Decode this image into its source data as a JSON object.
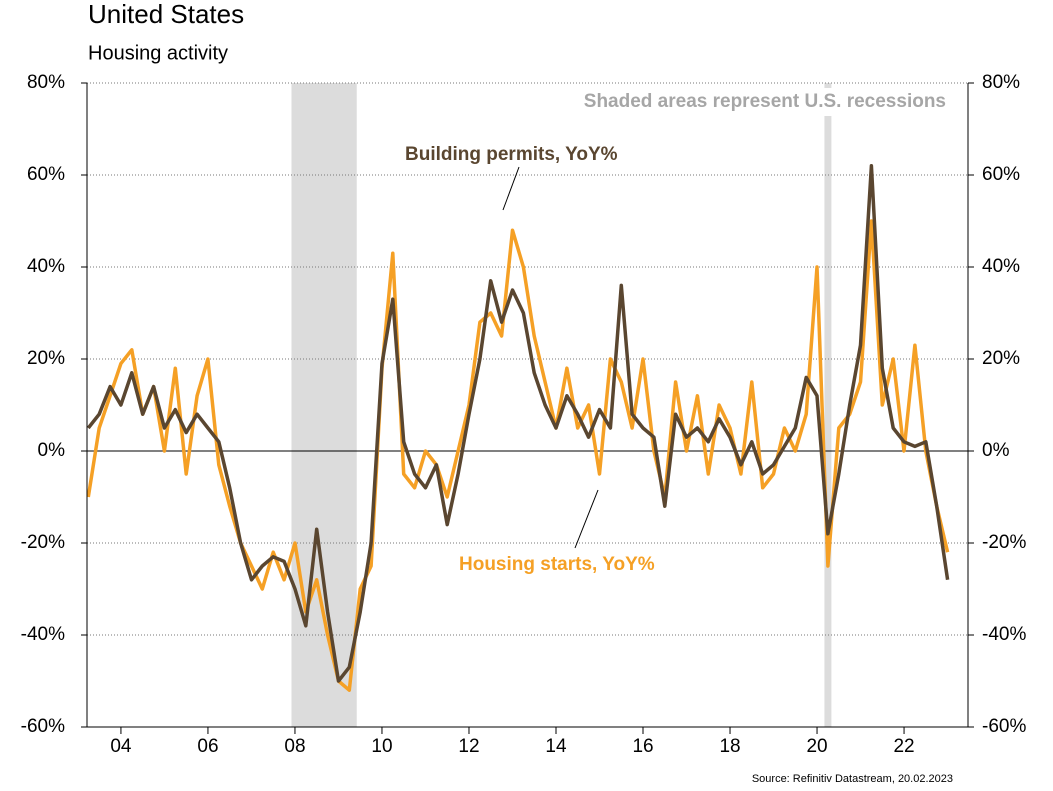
{
  "chart_data": {
    "type": "line",
    "title": "United States",
    "subtitle": "Housing activity",
    "source": "Source: Refinitiv Datastream, 20.02.2023",
    "recession_note": "Shaded areas represent U.S. recessions",
    "recessions": [
      [
        2007.92,
        2009.42
      ],
      [
        2020.17,
        2020.33
      ]
    ],
    "recession_color": "#dcdcdc",
    "x": [
      2003.25,
      2003.5,
      2003.75,
      2004,
      2004.25,
      2004.5,
      2004.75,
      2005,
      2005.25,
      2005.5,
      2005.75,
      2006,
      2006.25,
      2006.5,
      2006.75,
      2007,
      2007.25,
      2007.5,
      2007.75,
      2008,
      2008.25,
      2008.5,
      2008.75,
      2009,
      2009.25,
      2009.5,
      2009.75,
      2010,
      2010.25,
      2010.5,
      2010.75,
      2011,
      2011.25,
      2011.5,
      2011.75,
      2012,
      2012.25,
      2012.5,
      2012.75,
      2013,
      2013.25,
      2013.5,
      2013.75,
      2014,
      2014.25,
      2014.5,
      2014.75,
      2015,
      2015.25,
      2015.5,
      2015.75,
      2016,
      2016.25,
      2016.5,
      2016.75,
      2017,
      2017.25,
      2017.5,
      2017.75,
      2018,
      2018.25,
      2018.5,
      2018.75,
      2019,
      2019.25,
      2019.5,
      2019.75,
      2020,
      2020.25,
      2020.5,
      2020.75,
      2021,
      2021.25,
      2021.5,
      2021.75,
      2022,
      2022.25,
      2022.5,
      2022.75,
      2023
    ],
    "series": [
      {
        "name": "Housing starts, YoY%",
        "color": "#f5a025",
        "values": [
          -10,
          5,
          12,
          19,
          22,
          8,
          14,
          0,
          18,
          -5,
          12,
          20,
          -3,
          -12,
          -20,
          -25,
          -30,
          -22,
          -28,
          -20,
          -35,
          -28,
          -40,
          -50,
          -52,
          -30,
          -25,
          18,
          43,
          -5,
          -8,
          0,
          -3,
          -10,
          0,
          10,
          28,
          30,
          25,
          48,
          40,
          25,
          15,
          5,
          18,
          5,
          10,
          -5,
          20,
          15,
          5,
          20,
          0,
          -10,
          15,
          0,
          12,
          -5,
          10,
          5,
          -5,
          15,
          -8,
          -5,
          5,
          0,
          8,
          40,
          -25,
          5,
          8,
          15,
          50,
          10,
          20,
          0,
          23,
          0,
          -12,
          -22
        ]
      },
      {
        "name": "Building permits, YoY%",
        "color": "#5a4630",
        "values": [
          5,
          8,
          14,
          10,
          17,
          8,
          14,
          5,
          9,
          4,
          8,
          5,
          2,
          -8,
          -20,
          -28,
          -25,
          -23,
          -24,
          -30,
          -38,
          -17,
          -35,
          -50,
          -47,
          -35,
          -20,
          19,
          33,
          2,
          -5,
          -8,
          -3,
          -16,
          -5,
          8,
          20,
          37,
          28,
          35,
          30,
          17,
          10,
          5,
          12,
          8,
          3,
          9,
          5,
          36,
          8,
          5,
          3,
          -12,
          8,
          3,
          5,
          2,
          7,
          3,
          -3,
          2,
          -5,
          -3,
          1,
          5,
          16,
          12,
          -18,
          -5,
          10,
          23,
          62,
          18,
          5,
          2,
          1,
          2,
          -12,
          -28
        ]
      }
    ],
    "xlim": [
      2003.22,
      2023.47
    ],
    "xticks": [
      {
        "value": 2004,
        "label": "04"
      },
      {
        "value": 2006,
        "label": "06"
      },
      {
        "value": 2008,
        "label": "08"
      },
      {
        "value": 2010,
        "label": "10"
      },
      {
        "value": 2012,
        "label": "12"
      },
      {
        "value": 2014,
        "label": "14"
      },
      {
        "value": 2016,
        "label": "16"
      },
      {
        "value": 2018,
        "label": "18"
      },
      {
        "value": 2020,
        "label": "20"
      },
      {
        "value": 2022,
        "label": "22"
      }
    ],
    "ylim": [
      -60,
      80
    ],
    "yticks": [
      {
        "value": -60,
        "label": "-60%"
      },
      {
        "value": -40,
        "label": "-40%"
      },
      {
        "value": -20,
        "label": "-20%"
      },
      {
        "value": 0,
        "label": "0%"
      },
      {
        "value": 20,
        "label": "20%"
      },
      {
        "value": 40,
        "label": "40%"
      },
      {
        "value": 60,
        "label": "60%"
      },
      {
        "value": 80,
        "label": "80%"
      }
    ],
    "grid": true
  }
}
